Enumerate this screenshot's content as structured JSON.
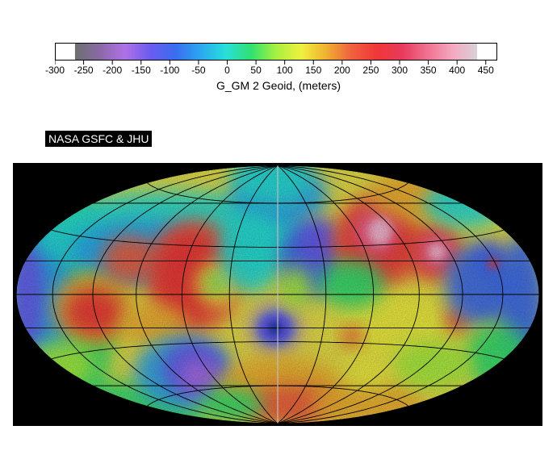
{
  "colorbar": {
    "title": "G_GM 2 Geoid, (meters)",
    "tick_values": [
      "-300",
      "-250",
      "-200",
      "-150",
      "-100",
      "-50",
      "0",
      "50",
      "100",
      "150",
      "200",
      "250",
      "300",
      "350",
      "400",
      "450"
    ],
    "range": [
      -300,
      470
    ],
    "colors": [
      "#6e6e6e",
      "#8a6aa8",
      "#b070e8",
      "#6a5cf0",
      "#3a6cf0",
      "#2aa8f0",
      "#28e0d8",
      "#30e070",
      "#a8f040",
      "#f0f040",
      "#f0b030",
      "#f06040",
      "#f03838",
      "#e83a5a",
      "#f07090",
      "#f4a8c0",
      "#d8d0d8"
    ]
  },
  "credit": "NASA GSFC & JHU",
  "map": {
    "projection": "Hammer-Aitoff",
    "background": "#000000",
    "base_color": "#e8e04a",
    "graticule_color": "#000000"
  }
}
